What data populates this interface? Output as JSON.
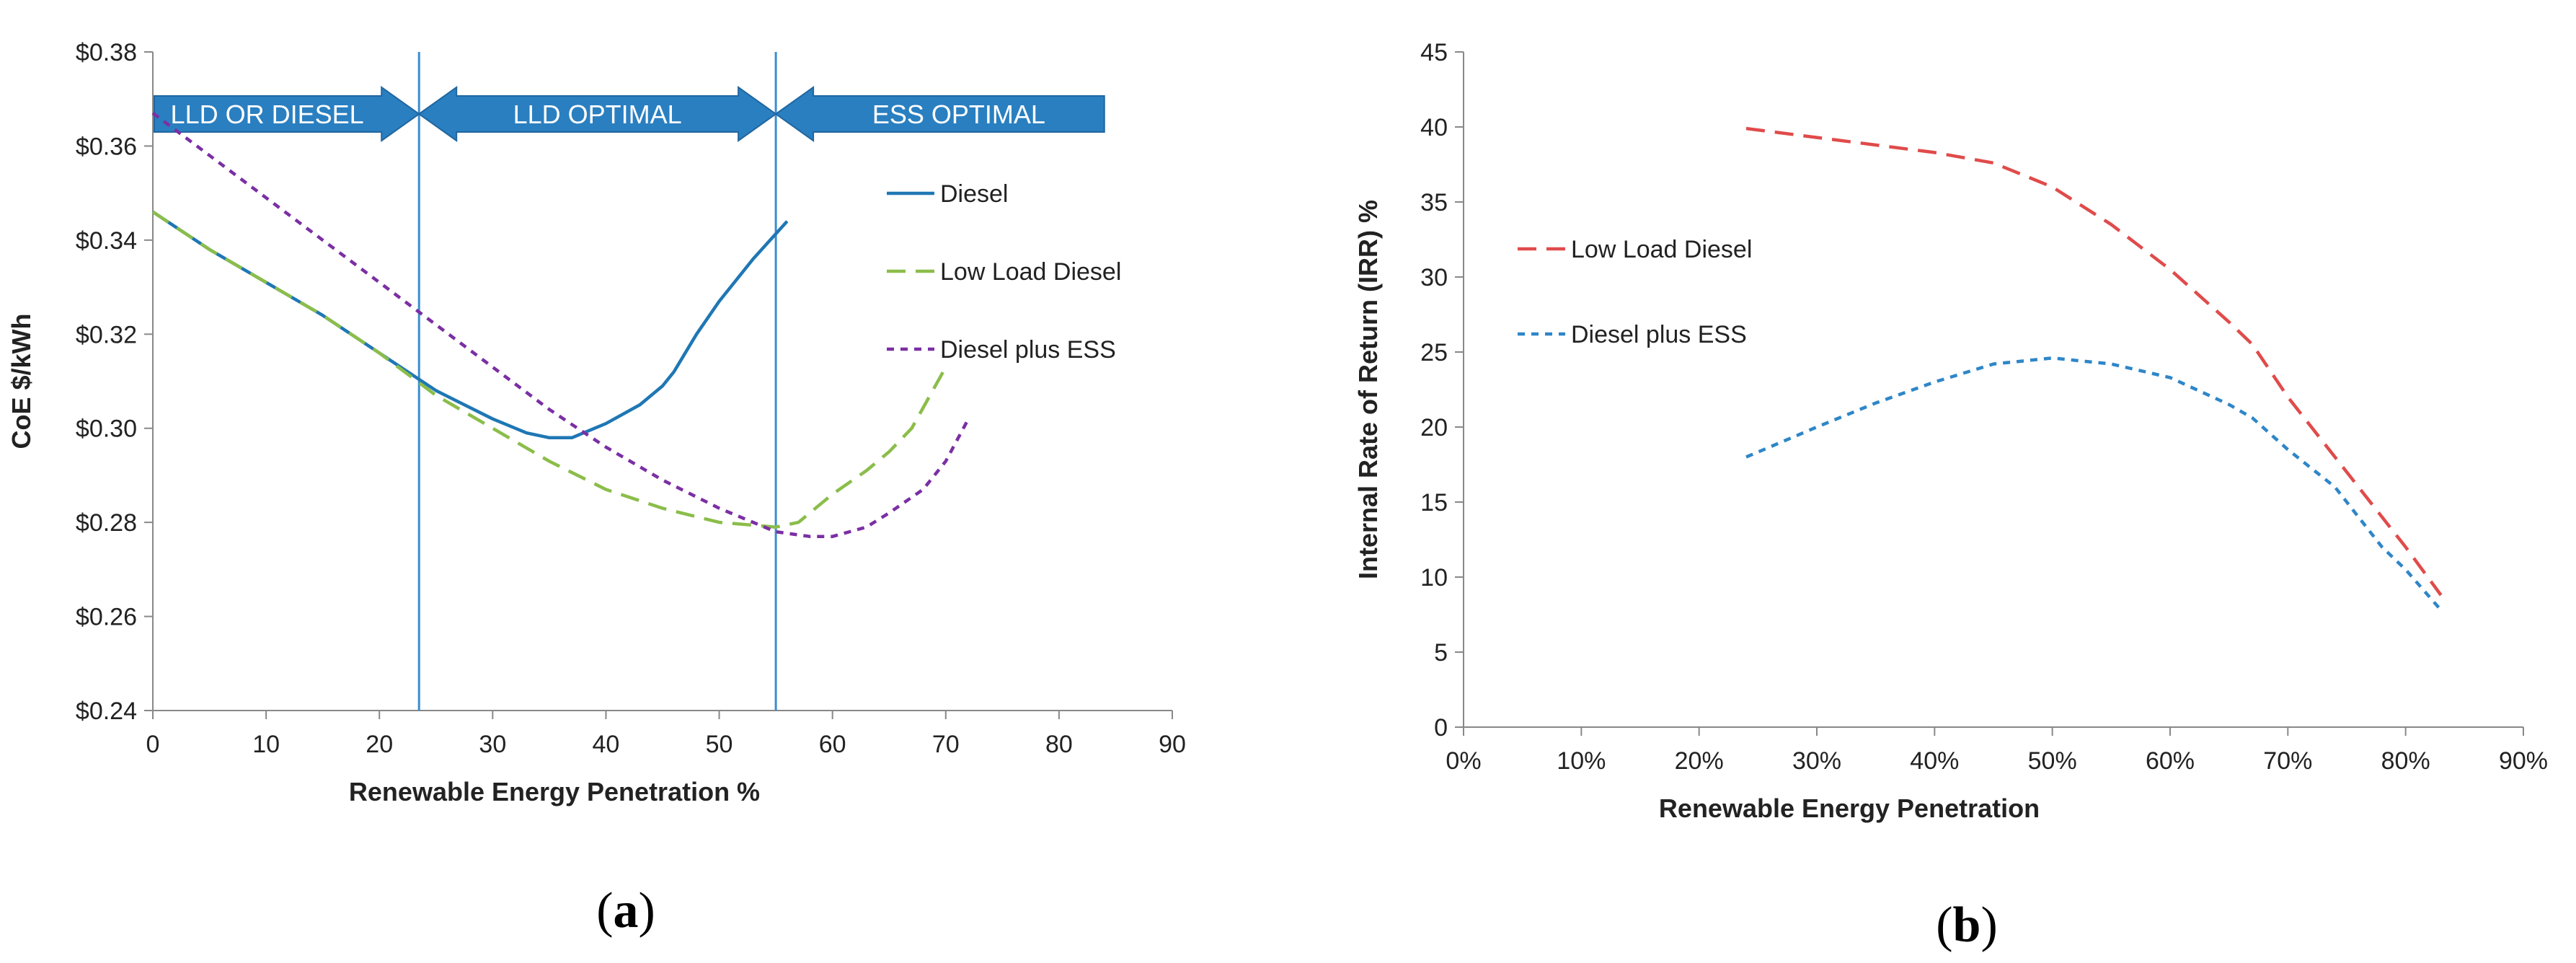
{
  "chart_data": [
    {
      "type": "line",
      "panel_label_prefix": "(",
      "panel_label_letter": "a",
      "panel_label_suffix": ")",
      "xlabel": "Renewable Energy Penetration %",
      "ylabel": "CoE $/kWh",
      "xlim": [
        0,
        90
      ],
      "ylim": [
        0.24,
        0.38
      ],
      "x_ticks": [
        "0",
        "10",
        "20",
        "30",
        "40",
        "50",
        "60",
        "70",
        "80",
        "90"
      ],
      "y_ticks": [
        "$0.24",
        "$0.26",
        "$0.28",
        "$0.30",
        "$0.32",
        "$0.34",
        "$0.36",
        "$0.38"
      ],
      "grid": false,
      "legend_position": "right",
      "vertical_lines": [
        23.5,
        55
      ],
      "banners": [
        {
          "label": "LLD OR DIESEL",
          "x_start": 0,
          "x_end": 23.5,
          "direction": "right"
        },
        {
          "label": "LLD OPTIMAL",
          "x_start": 23.5,
          "x_end": 55,
          "direction": "both"
        },
        {
          "label": "ESS OPTIMAL",
          "x_start": 55,
          "x_end": 84,
          "direction": "left"
        }
      ],
      "series": [
        {
          "name": "Diesel",
          "color": "#1f77b4",
          "dash": "solid",
          "x": [
            0,
            5,
            10,
            15,
            20,
            25,
            30,
            33,
            35,
            37,
            40,
            43,
            45,
            46,
            48,
            50,
            53,
            56
          ],
          "y": [
            0.346,
            0.338,
            0.331,
            0.324,
            0.316,
            0.308,
            0.302,
            0.299,
            0.298,
            0.298,
            0.301,
            0.305,
            0.309,
            0.312,
            0.32,
            0.327,
            0.336,
            0.344
          ]
        },
        {
          "name": "Low Load Diesel",
          "color": "#8bbd4a",
          "dash": "long",
          "x": [
            0,
            5,
            10,
            15,
            20,
            25,
            30,
            35,
            40,
            45,
            50,
            55,
            57,
            60,
            63,
            65,
            67,
            70
          ],
          "y": [
            0.346,
            0.338,
            0.331,
            0.324,
            0.316,
            0.307,
            0.3,
            0.293,
            0.287,
            0.283,
            0.28,
            0.279,
            0.28,
            0.286,
            0.291,
            0.295,
            0.3,
            0.313
          ]
        },
        {
          "name": "Diesel plus ESS",
          "color": "#7b2fa3",
          "dash": "short",
          "x": [
            0,
            5,
            10,
            15,
            20,
            25,
            30,
            35,
            40,
            45,
            50,
            55,
            58,
            60,
            63,
            65,
            68,
            70,
            72
          ],
          "y": [
            0.367,
            0.358,
            0.349,
            0.34,
            0.331,
            0.322,
            0.313,
            0.304,
            0.296,
            0.289,
            0.283,
            0.278,
            0.277,
            0.277,
            0.279,
            0.282,
            0.287,
            0.293,
            0.302
          ]
        }
      ]
    },
    {
      "type": "line",
      "panel_label_prefix": "(",
      "panel_label_letter": "b",
      "panel_label_suffix": ")",
      "xlabel": "Renewable Energy Penetration",
      "ylabel": "Internal Rate of Return (IRR) %",
      "xlim": [
        0,
        90
      ],
      "ylim": [
        0,
        45
      ],
      "x_ticks": [
        "0%",
        "10%",
        "20%",
        "30%",
        "40%",
        "50%",
        "60%",
        "70%",
        "80%",
        "90%"
      ],
      "y_ticks": [
        "0",
        "5",
        "10",
        "15",
        "20",
        "25",
        "30",
        "35",
        "40",
        "45"
      ],
      "grid": false,
      "legend_position": "left",
      "series": [
        {
          "name": "Low Load Diesel",
          "color": "#e04b4b",
          "dash": "long",
          "x": [
            24,
            30,
            35,
            40,
            45,
            50,
            55,
            60,
            65,
            67,
            70,
            75,
            80,
            83
          ],
          "y": [
            39.9,
            39.3,
            38.8,
            38.3,
            37.6,
            36.0,
            33.5,
            30.5,
            27.0,
            25.5,
            22.0,
            17.0,
            12.0,
            8.8
          ]
        },
        {
          "name": "Diesel plus ESS",
          "color": "#2e86c8",
          "dash": "short",
          "x": [
            24,
            30,
            35,
            40,
            45,
            50,
            55,
            60,
            65,
            67,
            70,
            74,
            78,
            80,
            83
          ],
          "y": [
            18.0,
            20.0,
            21.6,
            23.0,
            24.2,
            24.6,
            24.2,
            23.3,
            21.5,
            20.6,
            18.5,
            16.0,
            12.0,
            10.5,
            7.8
          ]
        }
      ]
    }
  ]
}
